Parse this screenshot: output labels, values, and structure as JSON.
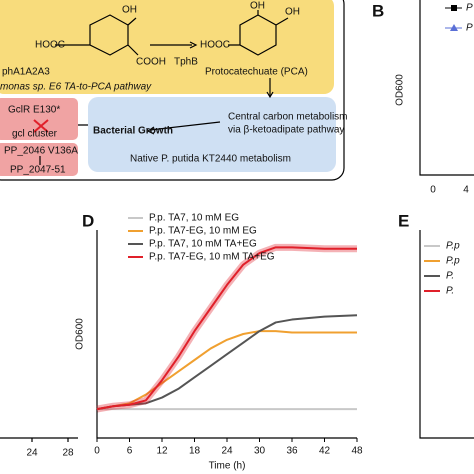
{
  "diagram": {
    "hooc_left": "HOOC",
    "oh_left": "OH",
    "cooh_left": "COOH",
    "enzyme_left": "phA1A2A3",
    "pathway": "monas sp. E6 TA-to-PCA pathway",
    "enzyme_right": "TphB",
    "hooc_right": "HOOC",
    "oh_right_1": "OH",
    "oh_right_2": "OH",
    "pca": "Protocatechuate (PCA)",
    "gclr": "GclR E130*",
    "gcl": "gcl cluster",
    "pp2046": "PP_2046 V136A",
    "pp2047": "PP_2047-51",
    "growth": "Bacterial Growth",
    "central_1": "Central carbon metabolism",
    "central_2": "via β-ketoadipate pathway",
    "native": "Native P. putida KT2440 metabolism"
  },
  "panel_b": {
    "label": "B",
    "ylabel": "OD600",
    "xticks": [
      "0",
      "4"
    ],
    "legend": [
      "P",
      "P"
    ]
  },
  "panel_left": {
    "xticks": [
      "24",
      "28"
    ]
  },
  "panel_e": {
    "label": "E",
    "legend": [
      "P.p",
      "P.p",
      "P.",
      "P."
    ]
  },
  "chart_data": {
    "type": "line",
    "label": "D",
    "xlabel": "Time (h)",
    "ylabel": "OD600",
    "x": [
      0,
      3,
      6,
      9,
      12,
      15,
      18,
      21,
      24,
      27,
      30,
      33,
      36,
      42,
      48
    ],
    "xlim": [
      0,
      48
    ],
    "xticks": [
      0,
      6,
      12,
      18,
      24,
      30,
      36,
      42,
      48
    ],
    "ylim": [
      0,
      0.72
    ],
    "series": [
      {
        "name": "P.p. TA7, 10 mM EG",
        "color": "#c8c8c8",
        "values": [
          0.1,
          0.1,
          0.1,
          0.1,
          0.1,
          0.1,
          0.1,
          0.1,
          0.1,
          0.1,
          0.1,
          0.1,
          0.1,
          0.1,
          0.1
        ]
      },
      {
        "name": "P.p. TA7-EG, 10 mM EG",
        "color": "#f0a030",
        "values": [
          0.1,
          0.11,
          0.12,
          0.15,
          0.19,
          0.23,
          0.27,
          0.31,
          0.34,
          0.36,
          0.37,
          0.37,
          0.365,
          0.365,
          0.365
        ]
      },
      {
        "name": "P.p. TA7, 10 mM TA+EG",
        "color": "#555555",
        "values": [
          0.1,
          0.11,
          0.115,
          0.12,
          0.14,
          0.17,
          0.21,
          0.25,
          0.29,
          0.33,
          0.37,
          0.4,
          0.41,
          0.42,
          0.425
        ]
      },
      {
        "name": "P.p. TA7-EG, 10 mM TA+EG",
        "color": "#e0202a",
        "values": [
          0.1,
          0.11,
          0.115,
          0.13,
          0.2,
          0.28,
          0.37,
          0.45,
          0.53,
          0.6,
          0.64,
          0.66,
          0.66,
          0.655,
          0.655
        ]
      }
    ]
  }
}
